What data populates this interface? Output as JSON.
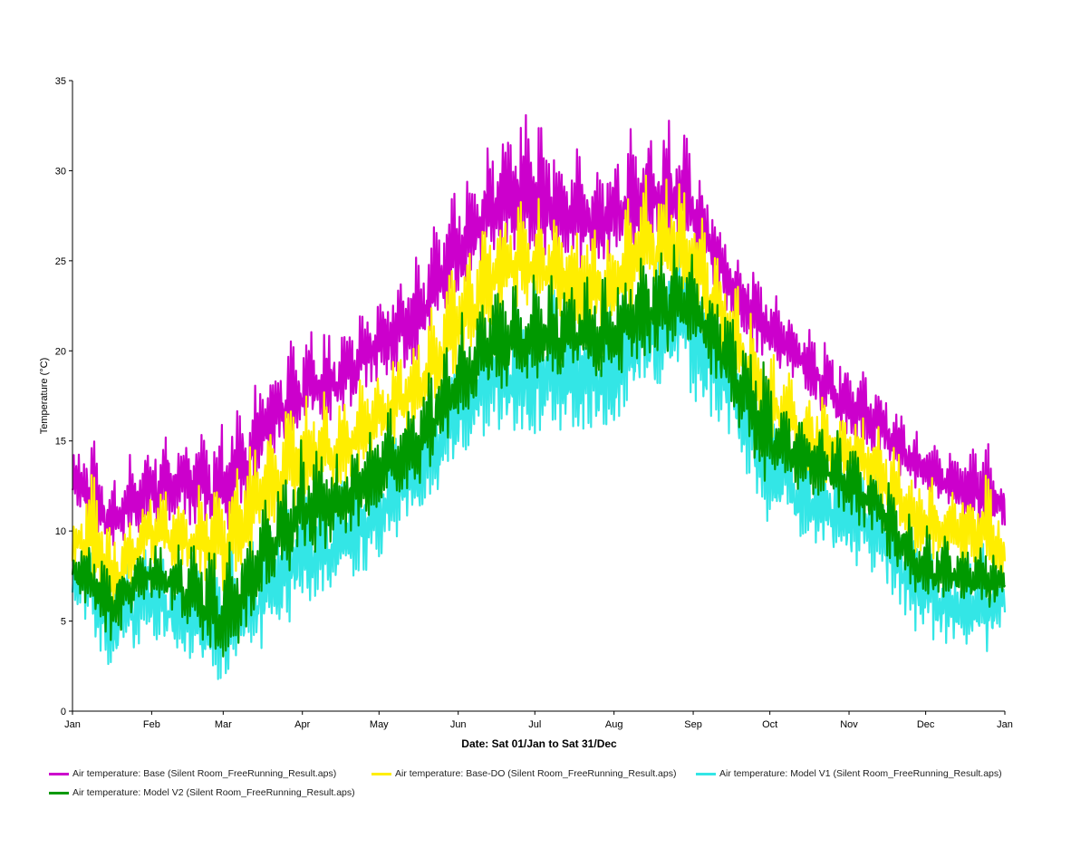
{
  "chart_data": {
    "type": "line",
    "title": "",
    "xlabel": "Date: Sat 01/Jan to Sat 31/Dec",
    "ylabel": "Temperature (°C)",
    "ylim": [
      0,
      35
    ],
    "xlim": [
      0,
      365
    ],
    "y_ticks": [
      0,
      5,
      10,
      15,
      20,
      25,
      30,
      35
    ],
    "x_tick_labels": [
      "Jan",
      "Feb",
      "Mar",
      "Apr",
      "May",
      "Jun",
      "Jul",
      "Aug",
      "Sep",
      "Oct",
      "Nov",
      "Dec",
      "Jan"
    ],
    "x_tick_days": [
      0,
      31,
      59,
      90,
      120,
      151,
      181,
      212,
      243,
      273,
      304,
      334,
      365
    ],
    "grid": false,
    "legend_position": "bottom",
    "series": [
      {
        "name": "Air temperature: Base (Silent Room_FreeRunning_Result.aps)",
        "color": "#cc00cc",
        "x": [
          0,
          7,
          15,
          30,
          45,
          60,
          75,
          90,
          105,
          120,
          135,
          150,
          165,
          180,
          195,
          210,
          225,
          240,
          255,
          270,
          285,
          300,
          315,
          330,
          345,
          360,
          365
        ],
        "min": [
          11,
          9,
          8.5,
          10,
          10,
          9,
          13,
          15,
          16,
          18,
          19,
          22,
          25,
          25,
          24,
          24,
          25,
          25,
          22,
          19,
          18,
          15,
          14,
          12,
          11,
          9,
          10
        ],
        "max": [
          15,
          17,
          13.5,
          16,
          16.5,
          17,
          20,
          22,
          22,
          24,
          26,
          30,
          33,
          34.5,
          32,
          32,
          34,
          34,
          28,
          25,
          22,
          21,
          19,
          16,
          15,
          16,
          13
        ]
      },
      {
        "name": "Air temperature: Base-DO (Silent Room_FreeRunning_Result.aps)",
        "color": "#ffee00",
        "x": [
          0,
          7,
          15,
          30,
          45,
          60,
          75,
          90,
          105,
          120,
          135,
          150,
          165,
          180,
          195,
          210,
          225,
          240,
          255,
          270,
          285,
          300,
          315,
          330,
          345,
          360,
          365
        ],
        "min": [
          8,
          6,
          4.5,
          8,
          7,
          6,
          9,
          11,
          12,
          14,
          15,
          18,
          21,
          22,
          21,
          20,
          22,
          22,
          19,
          15,
          13,
          12,
          11,
          8,
          8,
          7,
          7.5
        ],
        "max": [
          11,
          15,
          11,
          13,
          13,
          14,
          17,
          19,
          18,
          20,
          22,
          26,
          29,
          30,
          28,
          28,
          31,
          31,
          26,
          22,
          19,
          18,
          17,
          14,
          13,
          14,
          10
        ]
      },
      {
        "name": "Air temperature: Model V1 (Silent Room_FreeRunning_Result.aps)",
        "color": "#33e6e6",
        "x": [
          0,
          7,
          15,
          30,
          45,
          60,
          75,
          90,
          105,
          120,
          135,
          150,
          165,
          180,
          195,
          210,
          225,
          240,
          255,
          270,
          285,
          300,
          315,
          330,
          345,
          360,
          365
        ],
        "min": [
          6,
          4,
          1.5,
          4,
          2,
          1,
          3,
          5,
          6,
          8,
          10,
          13,
          15,
          14,
          15,
          15,
          17,
          17,
          15,
          10,
          9,
          8,
          7,
          4,
          3,
          2.7,
          5
        ],
        "max": [
          9,
          11,
          9,
          10,
          9,
          10,
          12,
          14,
          14,
          16,
          18,
          22,
          24,
          25,
          24,
          24,
          27,
          28,
          24,
          20,
          17,
          15,
          15,
          11,
          10,
          10,
          8
        ]
      },
      {
        "name": "Air temperature: Model V2 (Silent Room_FreeRunning_Result.aps)",
        "color": "#009900",
        "x": [
          0,
          7,
          15,
          30,
          45,
          60,
          75,
          90,
          105,
          120,
          135,
          150,
          165,
          180,
          195,
          210,
          225,
          240,
          255,
          270,
          285,
          300,
          315,
          330,
          345,
          360,
          365
        ],
        "min": [
          7,
          5,
          3.5,
          6,
          4.5,
          2,
          6,
          8,
          9,
          11,
          12,
          15,
          17,
          18,
          18,
          18,
          19,
          20,
          17,
          12,
          12,
          11,
          9,
          6,
          6,
          5,
          6.5
        ],
        "max": [
          9,
          11,
          9,
          10,
          10,
          10,
          13,
          16,
          15,
          17,
          19,
          23,
          25,
          25,
          25,
          25,
          27,
          27,
          24,
          21,
          17,
          16,
          15,
          11,
          10,
          10,
          8
        ]
      }
    ]
  },
  "legend": {
    "items": [
      "Air temperature: Base (Silent Room_FreeRunning_Result.aps)",
      "Air temperature: Base-DO (Silent Room_FreeRunning_Result.aps)",
      "Air temperature: Model V1 (Silent Room_FreeRunning_Result.aps)",
      "Air temperature: Model V2 (Silent Room_FreeRunning_Result.aps)"
    ],
    "colors": [
      "#cc00cc",
      "#ffee00",
      "#33e6e6",
      "#009900"
    ]
  }
}
